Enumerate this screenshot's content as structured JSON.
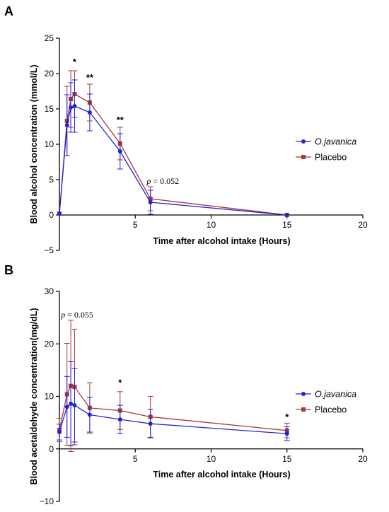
{
  "colors": {
    "ojavanica": "#2323d6",
    "placebo": "#a53a3a",
    "axis": "#000000"
  },
  "chart_data": [
    {
      "panel_label": "A",
      "type": "line",
      "xlabel": "Time after alcohol intake (Hours)",
      "ylabel": "Blood alcohol concentration (mmol/L)",
      "xlim": [
        0,
        20
      ],
      "ylim": [
        -5,
        25
      ],
      "xticks": [
        5,
        10,
        15,
        20
      ],
      "yticks": [
        -5,
        0,
        5,
        10,
        15,
        20,
        25
      ],
      "grid": false,
      "legend_position": "right",
      "series": [
        {
          "name": "O.javanica",
          "marker": "circle",
          "x": [
            0,
            0.5,
            0.75,
            1,
            2,
            4,
            6,
            15
          ],
          "y": [
            0.2,
            12.7,
            15.2,
            15.4,
            14.5,
            9.0,
            1.8,
            0
          ],
          "err": [
            0,
            4.3,
            3.5,
            3.7,
            2.6,
            2.5,
            1.7,
            0
          ]
        },
        {
          "name": "Placebo",
          "marker": "square",
          "x": [
            0,
            0.5,
            0.75,
            1,
            2,
            4,
            6,
            15
          ],
          "y": [
            0.2,
            13.3,
            16.4,
            17.1,
            15.9,
            10.1,
            2.3,
            0
          ],
          "err": [
            0,
            4.9,
            4.0,
            3.3,
            2.6,
            2.3,
            1.7,
            0
          ]
        }
      ],
      "annotations": [
        {
          "text": "*",
          "x": 1,
          "y": 21.2
        },
        {
          "text": "**",
          "x": 2,
          "y": 19.0
        },
        {
          "text": "**",
          "x": 4,
          "y": 13.0
        },
        {
          "text_p": "p",
          "text": " = 0.052",
          "x": 5.75,
          "y": 4.4
        }
      ]
    },
    {
      "panel_label": "B",
      "type": "line",
      "xlabel": "Time after alcohol intake (Hours)",
      "ylabel": "Blood acetaldehyde concentration(mg/dL)",
      "xlim": [
        0,
        20
      ],
      "ylim": [
        -10,
        30
      ],
      "xticks": [
        5,
        10,
        15,
        20
      ],
      "yticks": [
        -10,
        0,
        10,
        20,
        30
      ],
      "grid": false,
      "legend_position": "right",
      "series": [
        {
          "name": "O.javanica",
          "marker": "circle",
          "x": [
            0,
            0.5,
            0.75,
            1,
            2,
            4,
            6,
            15
          ],
          "y": [
            3.2,
            8.0,
            8.6,
            8.3,
            6.5,
            5.6,
            4.8,
            2.9
          ],
          "err": [
            1.5,
            5.8,
            8.0,
            7.0,
            3.3,
            2.7,
            2.7,
            1.3
          ]
        },
        {
          "name": "Placebo",
          "marker": "square",
          "x": [
            0,
            0.5,
            0.75,
            1,
            2,
            4,
            6,
            15
          ],
          "y": [
            3.6,
            10.4,
            12.0,
            11.8,
            7.8,
            7.3,
            6.1,
            3.5
          ],
          "err": [
            2.2,
            9.7,
            12.5,
            11.0,
            4.8,
            3.6,
            3.9,
            1.4
          ]
        }
      ],
      "annotations": [
        {
          "text_p": "p",
          "text": " = 0.055",
          "x": 0.1,
          "y": 25.0
        },
        {
          "text": "*",
          "x": 4,
          "y": 12.0
        },
        {
          "text": "*",
          "x": 15,
          "y": 5.5
        }
      ]
    }
  ]
}
